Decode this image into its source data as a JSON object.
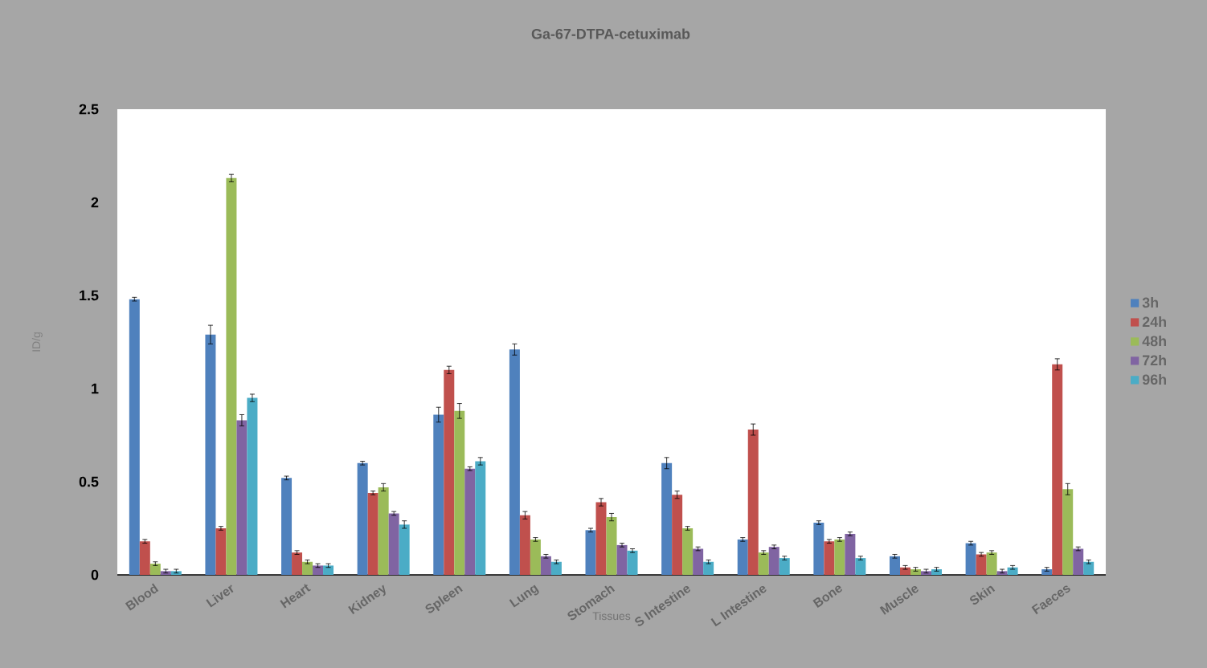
{
  "chart_data": {
    "type": "bar",
    "title": "Ga-67-DTPA-cetuximab",
    "xlabel": "Tissues",
    "ylabel": "ID/g",
    "categories": [
      "Blood",
      "Liver",
      "Heart",
      "Kidney",
      "Spleen",
      "Lung",
      "Stomach",
      "S Intestine",
      "L Intestine",
      "Bone",
      "Muscle",
      "Skin",
      "Faeces"
    ],
    "series": [
      {
        "name": "3h",
        "color": "#4f81bd",
        "values": [
          1.48,
          1.29,
          0.52,
          0.6,
          0.86,
          1.21,
          0.24,
          0.6,
          0.19,
          0.28,
          0.1,
          0.17,
          0.03
        ],
        "errors": [
          0.01,
          0.05,
          0.01,
          0.01,
          0.04,
          0.03,
          0.01,
          0.03,
          0.01,
          0.01,
          0.01,
          0.01,
          0.01
        ]
      },
      {
        "name": "24h",
        "color": "#c0504d",
        "values": [
          0.18,
          0.25,
          0.12,
          0.44,
          1.1,
          0.32,
          0.39,
          0.43,
          0.78,
          0.18,
          0.04,
          0.11,
          1.13
        ],
        "errors": [
          0.01,
          0.01,
          0.01,
          0.01,
          0.02,
          0.02,
          0.02,
          0.02,
          0.03,
          0.01,
          0.01,
          0.01,
          0.03
        ]
      },
      {
        "name": "48h",
        "color": "#9bbb59",
        "values": [
          0.06,
          2.13,
          0.07,
          0.47,
          0.88,
          0.19,
          0.31,
          0.25,
          0.12,
          0.19,
          0.03,
          0.12,
          0.46
        ],
        "errors": [
          0.01,
          0.02,
          0.01,
          0.02,
          0.04,
          0.01,
          0.02,
          0.01,
          0.01,
          0.01,
          0.01,
          0.01,
          0.03
        ]
      },
      {
        "name": "72h",
        "color": "#8064a2",
        "values": [
          0.02,
          0.83,
          0.05,
          0.33,
          0.57,
          0.1,
          0.16,
          0.14,
          0.15,
          0.22,
          0.02,
          0.02,
          0.14
        ],
        "errors": [
          0.01,
          0.03,
          0.01,
          0.01,
          0.01,
          0.01,
          0.01,
          0.01,
          0.01,
          0.01,
          0.01,
          0.01,
          0.01
        ]
      },
      {
        "name": "96h",
        "color": "#4bacc6",
        "values": [
          0.02,
          0.95,
          0.05,
          0.27,
          0.61,
          0.07,
          0.13,
          0.07,
          0.09,
          0.09,
          0.03,
          0.04,
          0.07
        ],
        "errors": [
          0.01,
          0.02,
          0.01,
          0.02,
          0.02,
          0.01,
          0.01,
          0.01,
          0.01,
          0.01,
          0.01,
          0.01,
          0.01
        ]
      }
    ],
    "ylim": [
      0,
      2.5
    ],
    "yticks": [
      0,
      0.5,
      1,
      1.5,
      2,
      2.5
    ],
    "grid": false,
    "legend": "right"
  }
}
